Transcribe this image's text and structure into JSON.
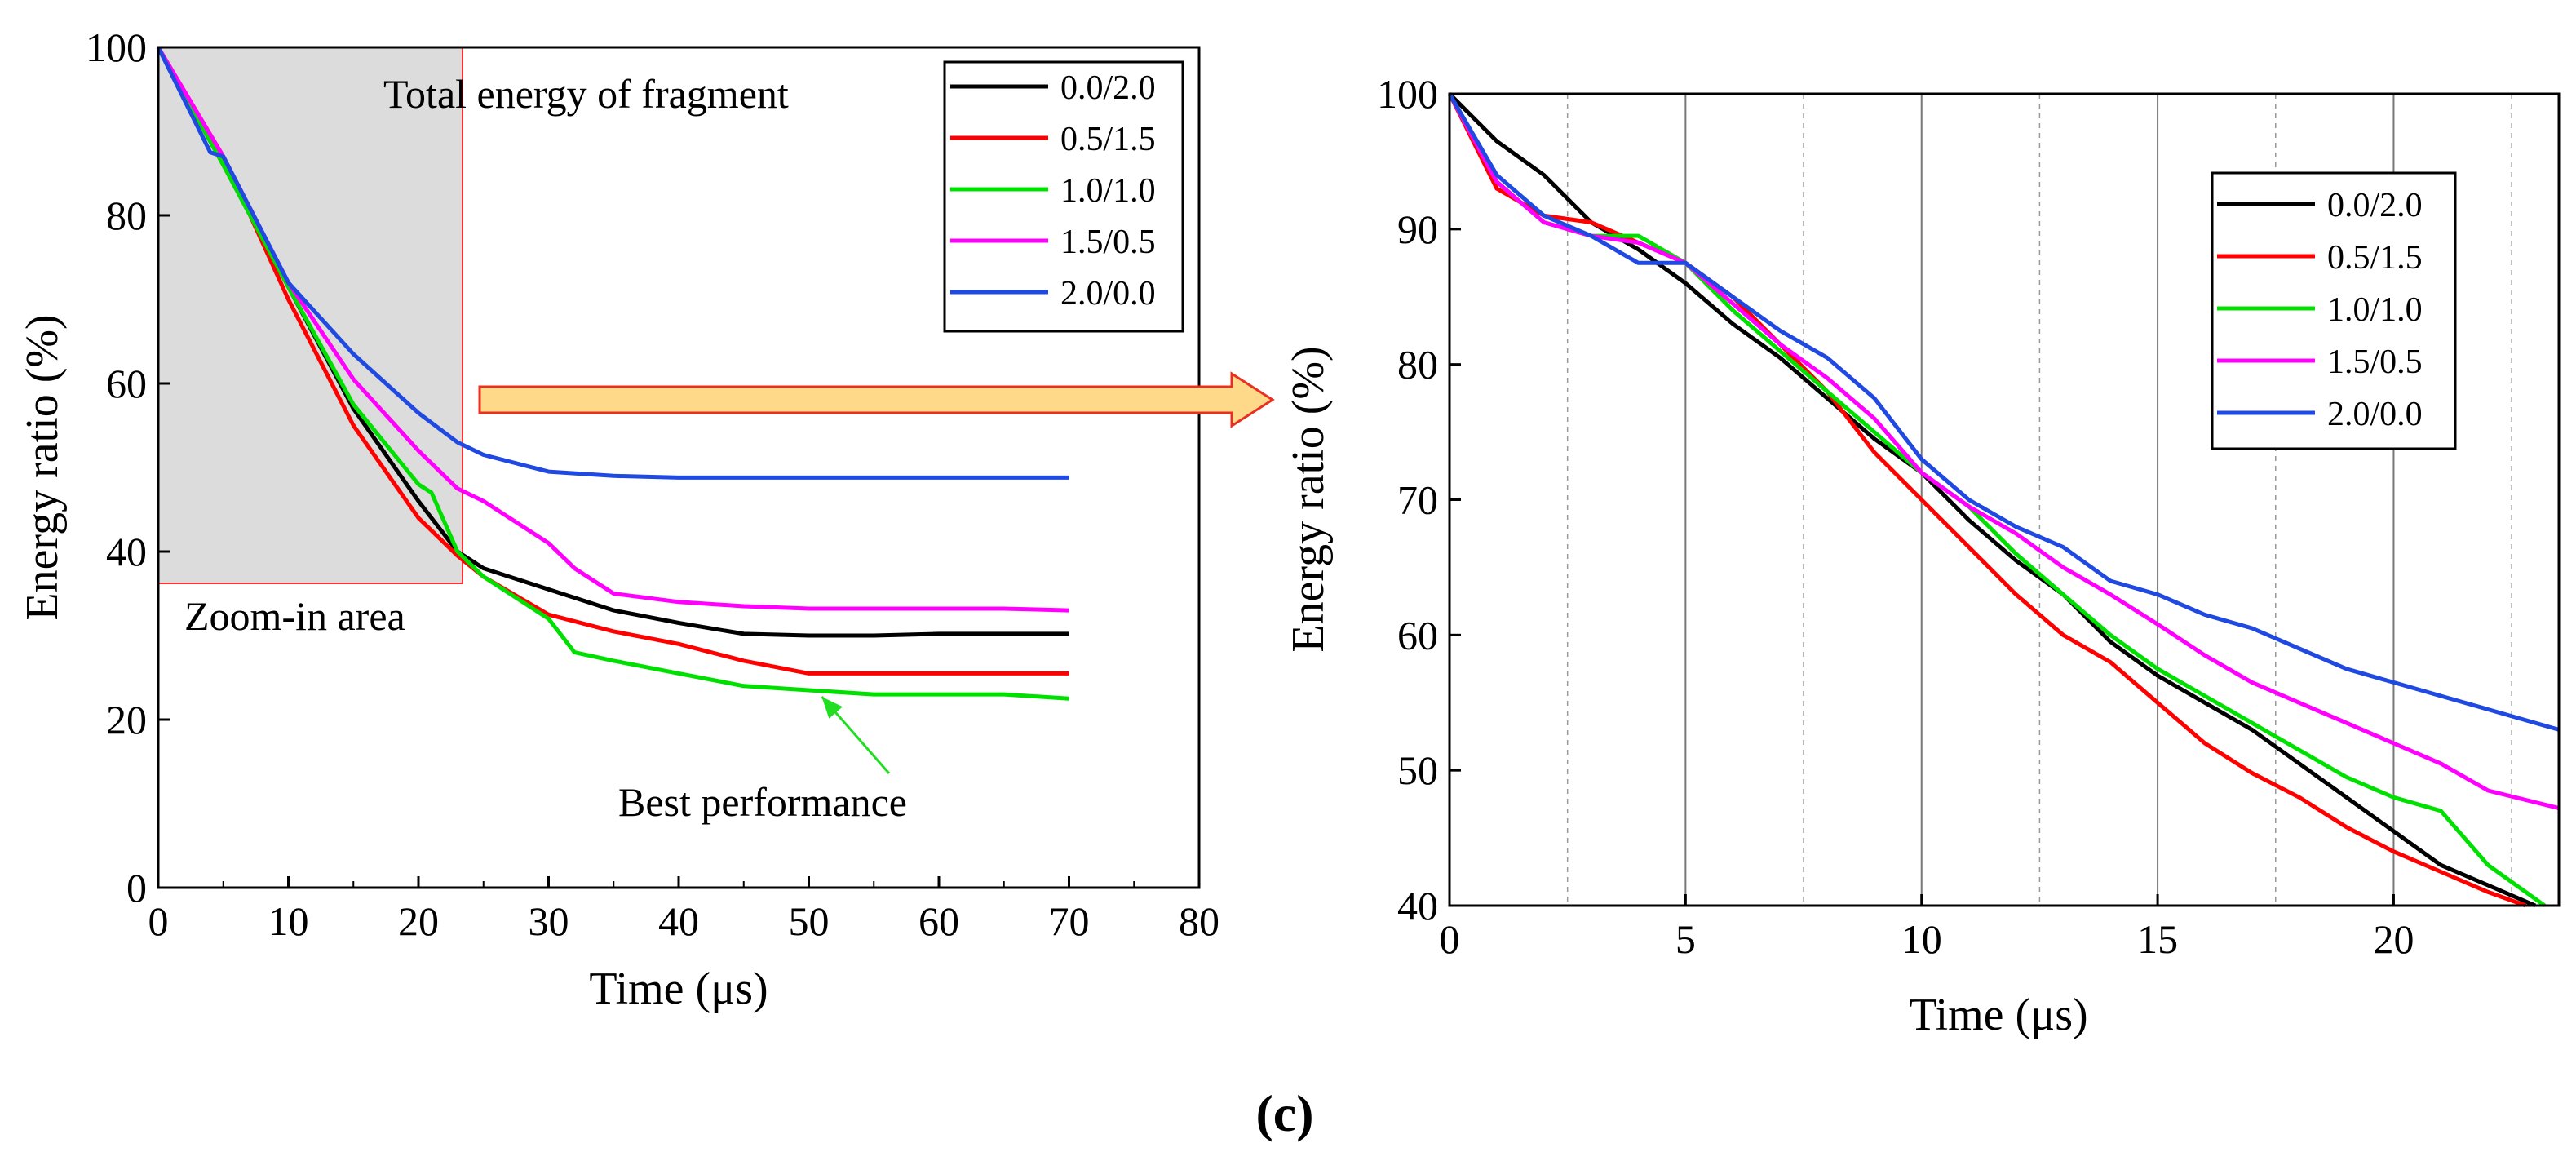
{
  "caption": "(c)",
  "colors": {
    "series": [
      "#000000",
      "#ff0000",
      "#00e000",
      "#ff00ff",
      "#1f49e0"
    ],
    "zoom_fill": "#dcdcdc",
    "zoom_stroke": "#ff3030",
    "arrow_fill": "#ffd98a",
    "arrow_stroke": "#e83020",
    "best_label": "#22dd22"
  },
  "chart_data": [
    {
      "type": "line",
      "title": "Total energy of fragment",
      "xlabel": "Time (μs)",
      "ylabel": "Energy ratio (%)",
      "xlim": [
        0,
        80
      ],
      "ylim": [
        0,
        100
      ],
      "xticks": [
        0,
        10,
        20,
        30,
        40,
        50,
        60,
        70,
        80
      ],
      "yticks": [
        0,
        20,
        40,
        60,
        80,
        100
      ],
      "grid": false,
      "legend_position": "top-right",
      "annotations": {
        "zoom_label": "Zoom-in area",
        "zoom_region": {
          "x": [
            0,
            23.3
          ],
          "y": [
            36,
            100
          ]
        },
        "best_label": "Best performance",
        "best_point": {
          "x": 51,
          "y": 23.5
        }
      },
      "series": [
        {
          "name": "0.0/2.0",
          "x": [
            0,
            5,
            10,
            15,
            20,
            23,
            25,
            30,
            35,
            40,
            45,
            50,
            55,
            60,
            65,
            70
          ],
          "values": [
            100,
            86,
            71.5,
            57,
            46,
            40,
            38,
            35.5,
            33,
            31.5,
            30.2,
            30,
            30,
            30.2,
            30.2,
            30.2
          ]
        },
        {
          "name": "0.5/1.5",
          "x": [
            0,
            5,
            10,
            15,
            20,
            23,
            25,
            30,
            35,
            40,
            45,
            50,
            55,
            60,
            65,
            70
          ],
          "values": [
            100,
            87,
            70,
            55,
            44,
            39.5,
            37,
            32.5,
            30.5,
            29,
            27,
            25.5,
            25.5,
            25.5,
            25.5,
            25.5
          ]
        },
        {
          "name": "1.0/1.0",
          "x": [
            0,
            5,
            10,
            15,
            20,
            21,
            23,
            25,
            30,
            32,
            35,
            40,
            45,
            50,
            55,
            60,
            65,
            70
          ],
          "values": [
            100,
            86,
            71.5,
            57.5,
            48,
            47,
            40,
            37,
            32,
            28,
            27,
            25.5,
            24,
            23.5,
            23,
            23,
            23,
            22.5
          ]
        },
        {
          "name": "1.5/0.5",
          "x": [
            0,
            5,
            10,
            15,
            20,
            23,
            25,
            28,
            30,
            32,
            35,
            40,
            45,
            50,
            55,
            60,
            65,
            70
          ],
          "values": [
            100,
            87,
            72,
            60.5,
            52,
            47.5,
            46,
            43,
            41,
            38,
            35,
            34,
            33.5,
            33.2,
            33.2,
            33.2,
            33.2,
            33
          ]
        },
        {
          "name": "2.0/0.0",
          "x": [
            0,
            4,
            5,
            10,
            15,
            20,
            23,
            25,
            30,
            35,
            40,
            45,
            50,
            55,
            60,
            65,
            70
          ],
          "values": [
            100,
            87.5,
            87,
            72,
            63.5,
            56.5,
            53,
            51.5,
            49.5,
            49,
            48.8,
            48.8,
            48.8,
            48.8,
            48.8,
            48.8,
            48.8
          ]
        }
      ]
    },
    {
      "type": "line",
      "title": "",
      "xlabel": "Time (μs)",
      "ylabel": "Energy ratio (%)",
      "xlim": [
        0,
        23.5
      ],
      "ylim": [
        40,
        100
      ],
      "xticks": [
        0,
        5,
        10,
        15,
        20
      ],
      "minor_gridlines": [
        2.5,
        7.5,
        12.5,
        17.5,
        22.5
      ],
      "yticks": [
        40,
        50,
        60,
        70,
        80,
        90,
        100
      ],
      "grid": true,
      "legend_position": "upper-right",
      "series": [
        {
          "name": "0.0/2.0",
          "x": [
            0,
            1,
            2,
            3,
            4,
            5,
            6,
            7,
            8,
            9,
            10,
            11,
            12,
            13,
            14,
            15,
            16,
            17,
            18,
            19,
            20,
            21,
            22,
            23
          ],
          "values": [
            100,
            96.5,
            94,
            90.5,
            88.5,
            86,
            83,
            80.5,
            77.5,
            74.5,
            72,
            68.5,
            65.5,
            63,
            59.5,
            57,
            55,
            53,
            50.5,
            48,
            45.5,
            43,
            41.5,
            40
          ]
        },
        {
          "name": "0.5/1.5",
          "x": [
            0,
            1,
            2,
            3,
            4,
            5,
            6,
            7,
            8,
            9,
            10,
            11,
            12,
            13,
            14,
            15,
            16,
            17,
            18,
            19,
            20,
            21,
            22,
            22.8
          ],
          "values": [
            100,
            93,
            91,
            90.5,
            89,
            87.5,
            85,
            81.5,
            78,
            73.5,
            70,
            66.5,
            63,
            60,
            58,
            55,
            52,
            49.8,
            48,
            45.8,
            44,
            42.5,
            41,
            40
          ]
        },
        {
          "name": "1.0/1.0",
          "x": [
            0,
            1,
            2,
            3,
            4,
            5,
            6,
            7,
            8,
            9,
            10,
            11,
            12,
            13,
            14,
            15,
            16,
            17,
            18,
            19,
            20,
            21,
            22,
            23.2
          ],
          "values": [
            100,
            93.5,
            90.5,
            89.5,
            89.5,
            87.5,
            84,
            81,
            78,
            75,
            72,
            69.5,
            66,
            63,
            60,
            57.5,
            55.5,
            53.5,
            51.5,
            49.5,
            48,
            47,
            43,
            40
          ]
        },
        {
          "name": "1.5/0.5",
          "x": [
            0,
            1,
            2,
            3,
            4,
            5,
            6,
            7,
            8,
            9,
            10,
            11,
            12,
            13,
            14,
            15,
            16,
            17,
            18,
            19,
            20,
            21,
            22,
            23.5
          ],
          "values": [
            100,
            93.5,
            90.5,
            89.5,
            89,
            87.5,
            84.5,
            81.5,
            79,
            76,
            72,
            69.5,
            67.5,
            65,
            63,
            60.8,
            58.5,
            56.5,
            55,
            53.5,
            52,
            50.5,
            48.5,
            47.2
          ]
        },
        {
          "name": "2.0/0.0",
          "x": [
            0,
            1,
            2,
            3,
            4,
            5,
            6,
            7,
            8,
            9,
            10,
            11,
            12,
            13,
            14,
            15,
            16,
            17,
            18,
            19,
            20,
            21,
            22,
            23.5
          ],
          "values": [
            100,
            94,
            91,
            89.5,
            87.5,
            87.5,
            85,
            82.5,
            80.5,
            77.5,
            73,
            70,
            68,
            66.5,
            64,
            63,
            61.5,
            60.5,
            59,
            57.5,
            56.5,
            55.5,
            54.5,
            53
          ]
        }
      ]
    }
  ]
}
